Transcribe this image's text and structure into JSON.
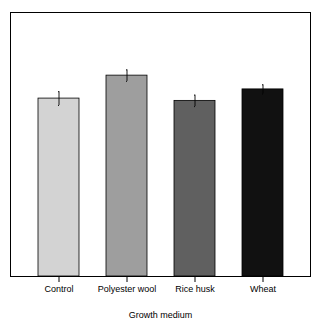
{
  "chart_data": {
    "type": "bar",
    "categories": [
      "Control",
      "Polyester wool",
      "Rice husk",
      "Wheat"
    ],
    "values": [
      155,
      175,
      153,
      163
    ],
    "errors": [
      6,
      5,
      5,
      4
    ],
    "colors": [
      "#d3d3d3",
      "#9e9e9e",
      "#606060",
      "#111111"
    ],
    "xlabel": "Growth medium",
    "ylim": [
      0,
      230
    ],
    "grid": false,
    "tick_labels": "x"
  }
}
